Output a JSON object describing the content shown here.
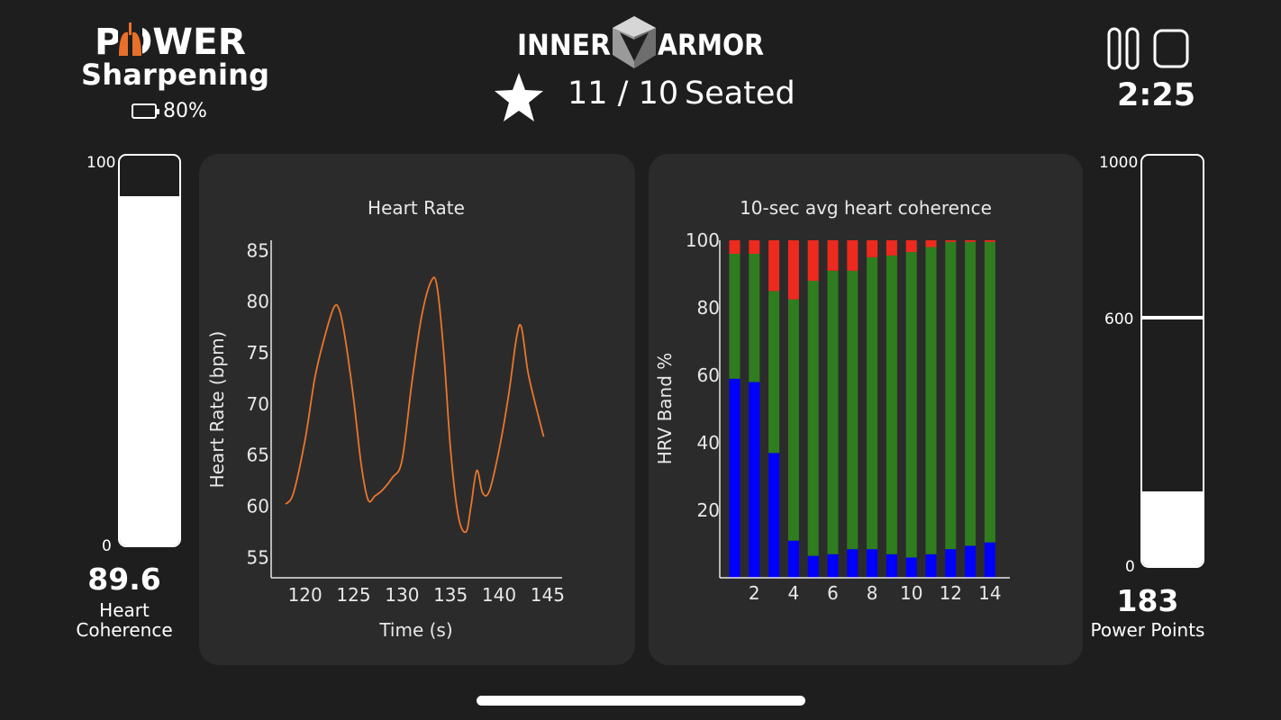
{
  "header": {
    "logo_text": "POWER",
    "mode": "Sharpening",
    "battery_percent": "80%",
    "brand": {
      "left": "INNER",
      "right": "ARMOR"
    },
    "session_count": "11 / 10",
    "position": "Seated",
    "timer": "2:25",
    "icons": [
      "lungs-icon",
      "battery-icon",
      "star-icon",
      "pause-icon",
      "stop-icon"
    ]
  },
  "heart_coherence": {
    "max_label": "100",
    "min_label": "0",
    "value": "89.6",
    "label": "Heart Coherence",
    "level_fraction": 0.896
  },
  "power_points": {
    "max_label": "1000",
    "mid_label": "600",
    "min_label": "0",
    "value": "183",
    "label": "Power Points",
    "level_fraction": 0.183,
    "mark_fraction": 0.6
  },
  "colors": {
    "background": "#1f1e1e",
    "card": "#2c2b2b",
    "hr_line": "#e8762c",
    "band_low": "#0000ff",
    "band_mid": "#2f7d1e",
    "band_high": "#ee2a1e",
    "logo_accent": "#e8702a"
  },
  "chart_data": [
    {
      "type": "line",
      "title": "Heart Rate",
      "xlabel": "Time (s)",
      "ylabel": "Heart Rate (bpm)",
      "xlim": [
        116.5,
        146.5
      ],
      "ylim": [
        53,
        86
      ],
      "xticks": [
        120,
        125,
        130,
        135,
        140,
        145
      ],
      "yticks": [
        55,
        60,
        65,
        70,
        75,
        80,
        85
      ],
      "x": [
        118,
        118.8,
        120,
        121,
        122,
        123,
        123.6,
        124.2,
        125,
        125.8,
        126.5,
        127.2,
        128,
        129,
        130,
        131,
        132,
        133,
        133.6,
        134.3,
        135,
        135.8,
        136.6,
        137.1,
        137.7,
        138.3,
        139,
        140,
        141,
        141.8,
        142.3,
        143,
        144,
        144.6
      ],
      "y": [
        60.2,
        61.3,
        66.5,
        72.5,
        76.5,
        79.5,
        79.0,
        76.0,
        70.5,
        64.0,
        60.6,
        61.0,
        61.6,
        62.8,
        64.5,
        72.0,
        78.5,
        82.0,
        81.5,
        75.0,
        65.5,
        59.0,
        57.5,
        60.0,
        63.5,
        61.3,
        61.5,
        65.5,
        71.0,
        76.5,
        77.5,
        73.0,
        69.0,
        66.8
      ],
      "grid": false
    },
    {
      "type": "bar",
      "stacked": true,
      "title": "10-sec avg heart coherence",
      "xlabel": "",
      "ylabel": "HRV Band %",
      "ylim": [
        0,
        100
      ],
      "xticks": [
        2,
        4,
        6,
        8,
        10,
        12,
        14
      ],
      "yticks": [
        20,
        40,
        60,
        80,
        100
      ],
      "categories": [
        1,
        2,
        3,
        4,
        5,
        6,
        7,
        8,
        9,
        10,
        11,
        12,
        13,
        14
      ],
      "series": [
        {
          "values": [
            59,
            58,
            37,
            11,
            6.5,
            7,
            8.5,
            8.5,
            7,
            6,
            7,
            8.5,
            9.5,
            10.5
          ]
        },
        {
          "values": [
            37,
            38,
            48,
            71.5,
            81.5,
            84,
            82.5,
            86.5,
            88.5,
            90.5,
            91,
            91,
            90,
            89
          ]
        },
        {
          "values": [
            4,
            4,
            15,
            17.5,
            12,
            9,
            9,
            5,
            4.5,
            3.5,
            2,
            0.5,
            0.5,
            0.5
          ]
        }
      ],
      "grid": false
    }
  ]
}
